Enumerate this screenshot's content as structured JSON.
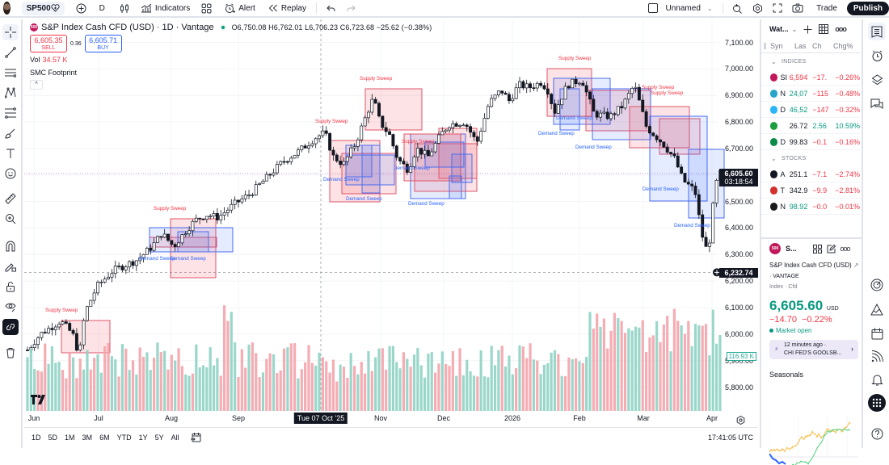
{
  "topbar": {
    "symbol": "SP500",
    "interval": "D",
    "indicators_label": "Indicators",
    "alert_label": "Alert",
    "replay_label": "Replay",
    "layout_name": "Unnamed",
    "trade_label": "Trade",
    "publish_label": "Publish"
  },
  "legend": {
    "title": "S&P Index Cash CFD (USD) · 1D · Vantage",
    "logo": "500",
    "open": "O6,750.08",
    "high": "H6,762.01",
    "low": "L6,706.23",
    "close": "C6,723.68",
    "change": "−25.62 (−0.38%)",
    "sell_price": "6,605.35",
    "sell_label": "SELL",
    "spread": "0.36",
    "buy_price": "6,605.71",
    "buy_label": "BUY",
    "vol_label": "Vol",
    "vol_value": "34.57 K",
    "indicator_name": "SMC Footprint",
    "collapse": "^"
  },
  "price_axis": {
    "ticks": [
      "7,100.00",
      "7,000.00",
      "6,900.00",
      "6,800.00",
      "6,700.00",
      "6,600.00",
      "6,500.00",
      "6,400.00",
      "6,300.00",
      "6,200.00",
      "6,100.00",
      "6,000.00",
      "5,900.00",
      "5,800.00"
    ],
    "current_price": "6,605.60",
    "countdown": "03:18:54",
    "crosshair_price": "6,232.74",
    "volume_label": "116.93 K"
  },
  "time_axis": {
    "ticks": [
      "Jun",
      "Jul",
      "Aug",
      "Sep",
      "Nov",
      "Dec",
      "2026",
      "Feb",
      "Mar",
      "Apr"
    ],
    "crosshair_date": "Tue 07 Oct '25"
  },
  "bottom_bar": {
    "ranges": [
      "1D",
      "5D",
      "1M",
      "3M",
      "6M",
      "YTD",
      "1Y",
      "5Y",
      "All"
    ],
    "clock": "17:41:05 UTC"
  },
  "annotations": {
    "supply": "Supply Sweep",
    "demand": "Demand Sweep"
  },
  "watchlist": {
    "title": "Wat...",
    "columns": [
      "Syn",
      "Las",
      "Ch",
      "Chg%"
    ],
    "sections": [
      {
        "name": "INDICES",
        "rows": [
          {
            "sym": "SI",
            "last": "6,594",
            "ch": "−17.",
            "chp": "−0.26%",
            "logo_color": "#c2185b",
            "last_class": "neg",
            "ch_class": "neg",
            "chp_class": "neg"
          },
          {
            "sym": "N",
            "last": "24,07",
            "ch": "−115",
            "chp": "−0.48%",
            "logo_color": "#26a5c9",
            "last_class": "pos",
            "ch_class": "neg",
            "chp_class": "neg"
          },
          {
            "sym": "D",
            "last": "46,52",
            "ch": "−147",
            "chp": "−0.32%",
            "logo_color": "#29b6f6",
            "last_class": "pos",
            "ch_class": "neg",
            "chp_class": "neg"
          },
          {
            "sym": "",
            "last": "26.72",
            "ch": "2.56",
            "chp": "10.59%",
            "logo_color": "#1b9e3e",
            "last_class": "blk",
            "ch_class": "pos",
            "chp_class": "pos"
          },
          {
            "sym": "D",
            "last": "99.83",
            "ch": "−0.1",
            "chp": "−0.16%",
            "logo_color": "#0b8a4a",
            "last_class": "blk",
            "ch_class": "neg",
            "chp_class": "neg"
          }
        ]
      },
      {
        "name": "STOCKS",
        "rows": [
          {
            "sym": "A",
            "last": "251.1",
            "ch": "−7.1",
            "chp": "−2.74%",
            "logo_color": "#131722",
            "last_class": "blk",
            "ch_class": "neg",
            "chp_class": "neg"
          },
          {
            "sym": "T",
            "last": "342.9",
            "ch": "−9.9",
            "chp": "−2.81%",
            "logo_color": "#d32f2f",
            "last_class": "blk",
            "ch_class": "neg",
            "chp_class": "neg"
          },
          {
            "sym": "N",
            "last": "98.92",
            "ch": "−0.0",
            "chp": "−0.01%",
            "logo_color": "#1a1a1a",
            "last_class": "pos",
            "ch_class": "neg",
            "chp_class": "neg"
          }
        ]
      }
    ]
  },
  "details": {
    "logo": "500",
    "short_name": "S...",
    "full_name": "S&P Index Cash CFD (USD)",
    "exchange": "· VANTAGE",
    "type": "Index · Cfd",
    "price": "6,605.60",
    "currency": "USD",
    "change": "−14.70",
    "change_pct": "−0.22%",
    "market_status": "Market open",
    "news_time": "12 minutes ago ·",
    "news_headline": "CHI FED'S GOOLSB...",
    "seasonals_label": "Seasonals"
  },
  "colors": {
    "up": "#089981",
    "down": "#f23645",
    "vol_up": "#8fd3c4",
    "vol_down": "#f4a3ab",
    "supply_fill": "rgba(242,54,69,0.14)",
    "supply_border": "#e0566a",
    "demand_fill": "rgba(41,98,255,0.12)",
    "demand_border": "#4a6cf0"
  }
}
